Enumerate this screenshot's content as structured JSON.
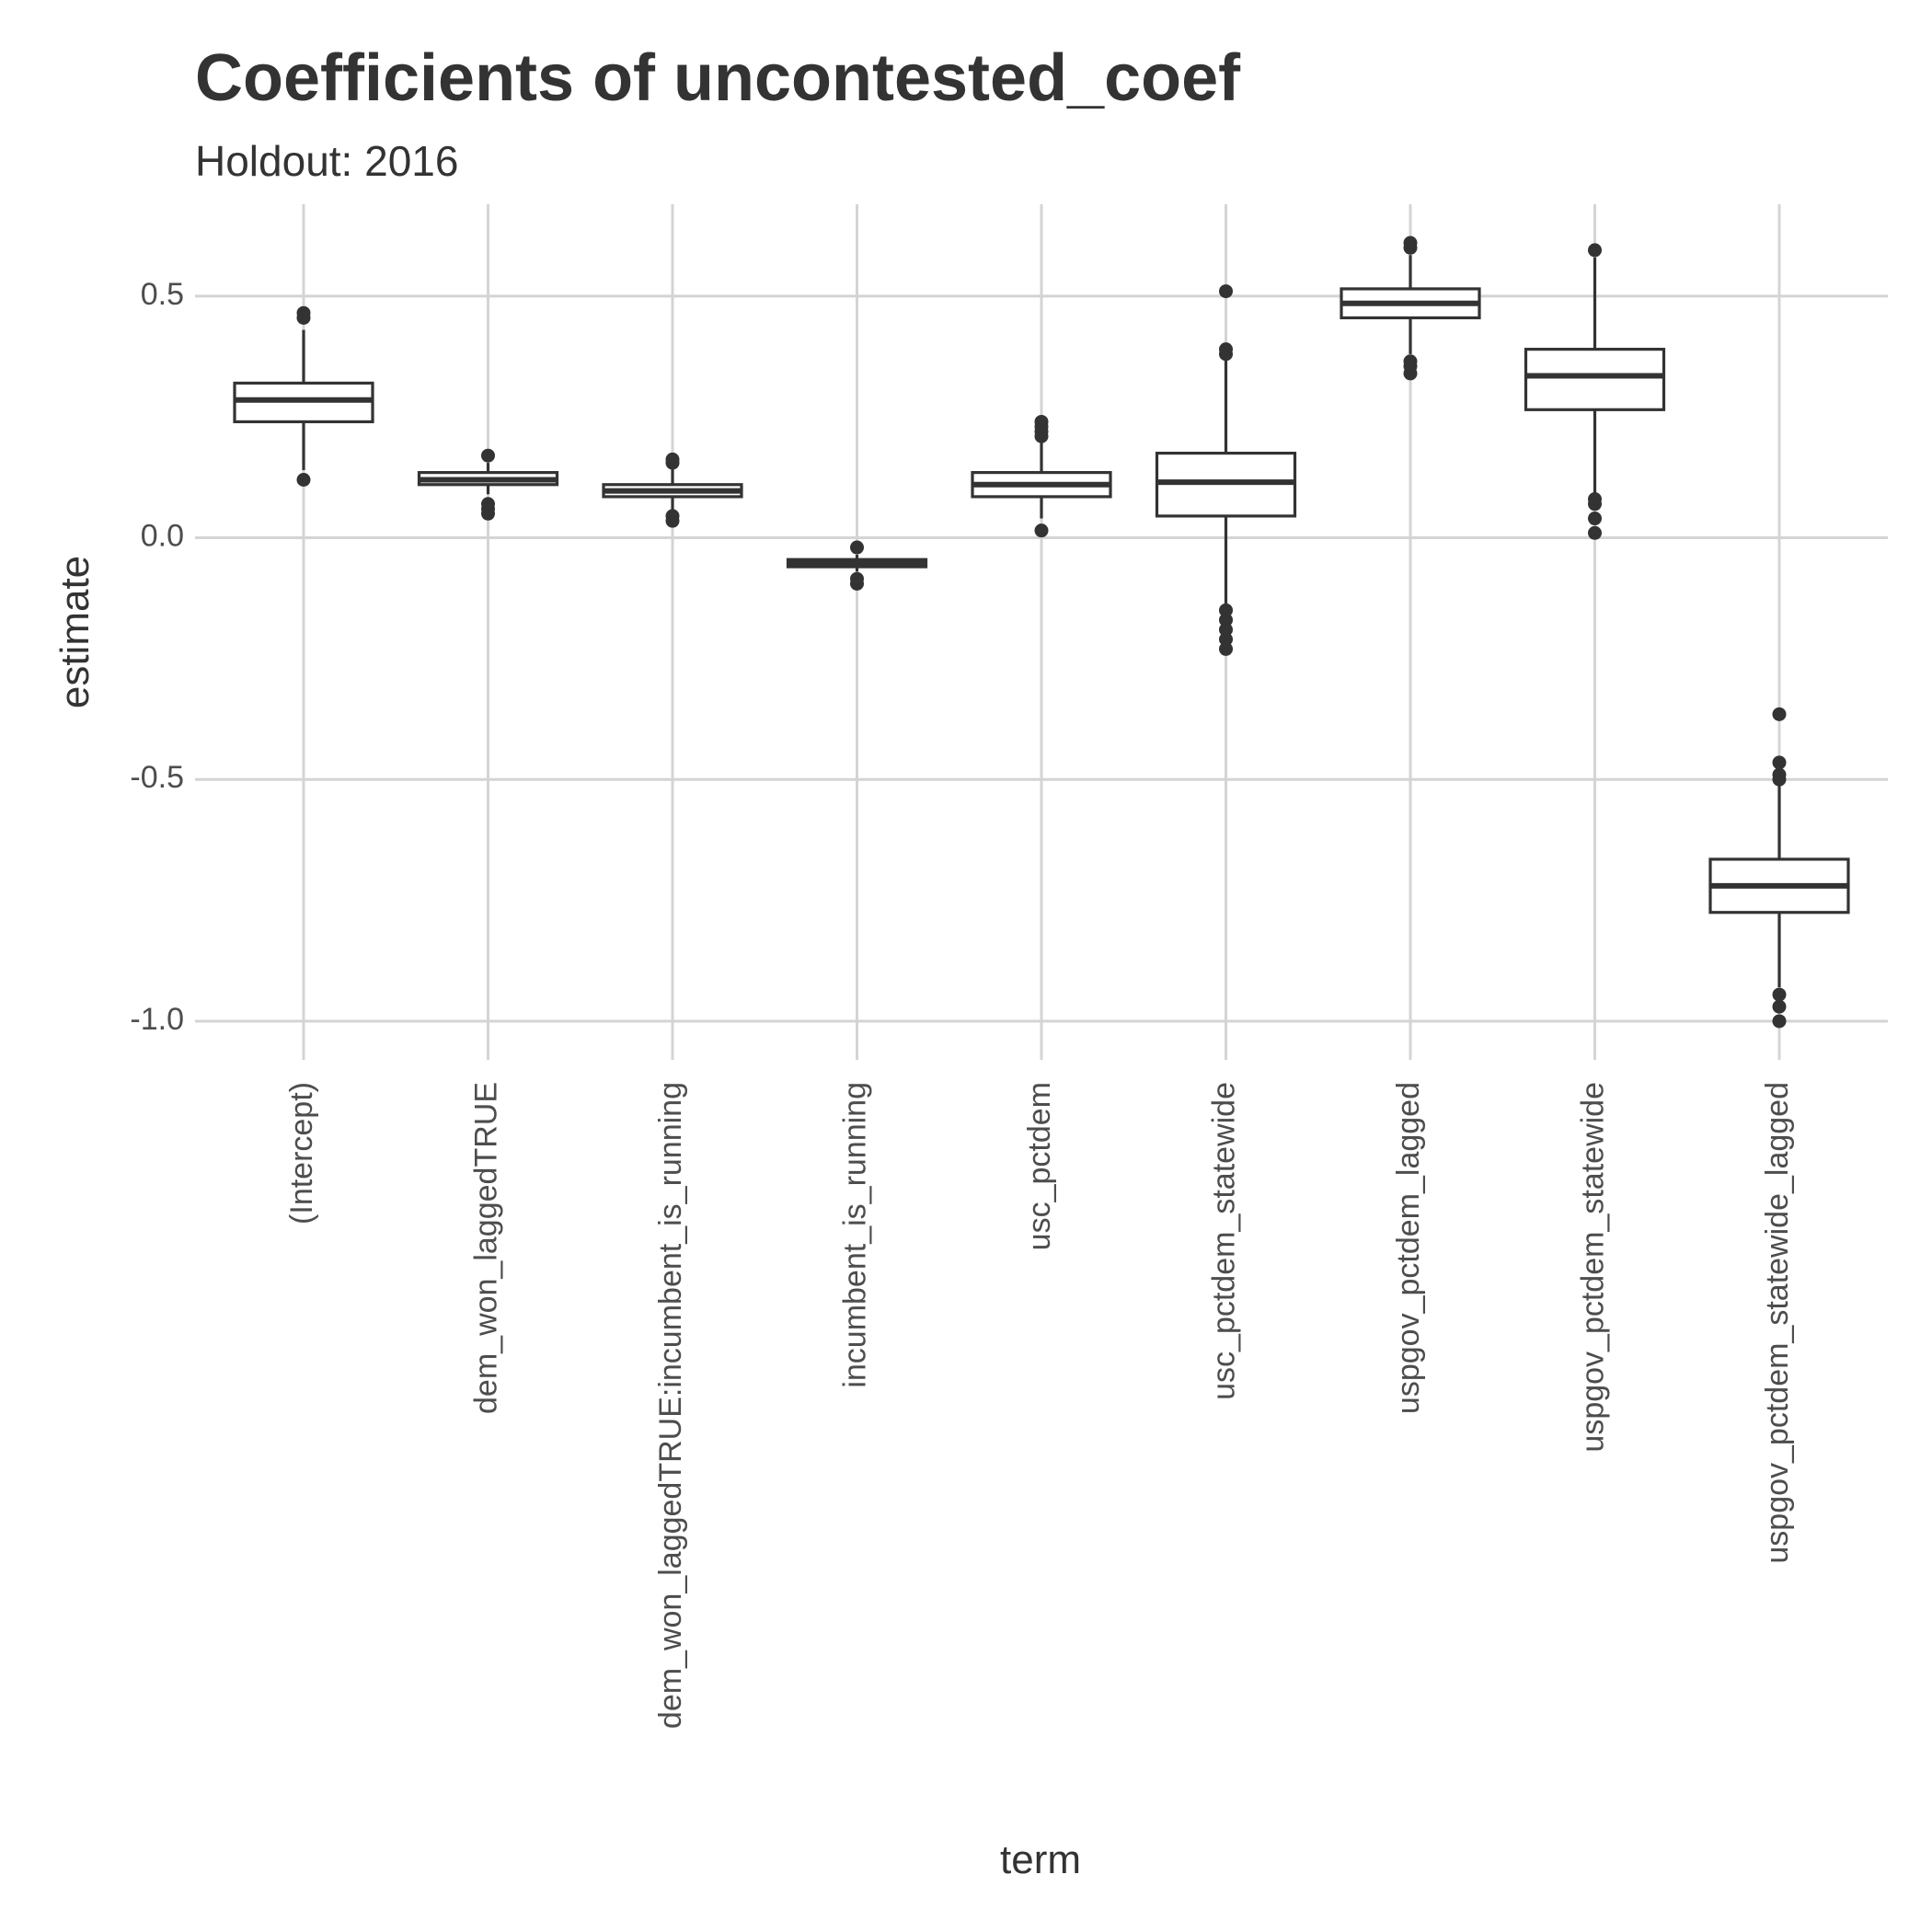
{
  "chart_data": {
    "type": "boxplot",
    "title": "Coefficients of uncontested_coef",
    "subtitle": "Holdout: 2016",
    "xlabel": "term",
    "ylabel": "estimate",
    "ylim": [
      -1.08,
      0.69
    ],
    "yticks": [
      0.5,
      0.0,
      -0.5,
      -1.0
    ],
    "ytick_labels": [
      "0.5",
      "0.0",
      "-0.5",
      "-1.0"
    ],
    "grid": true,
    "categories": [
      "(Intercept)",
      "dem_won_laggedTRUE",
      "dem_won_laggedTRUE:incumbent_is_running",
      "incumbent_is_running",
      "usc_pctdem",
      "usc_pctdem_statewide",
      "uspgov_pctdem_lagged",
      "uspgov_pctdem_statewide",
      "uspgov_pctdem_statewide_lagged"
    ],
    "boxes": [
      {
        "term": "(Intercept)",
        "whisker_low": 0.14,
        "q1": 0.24,
        "median": 0.285,
        "q3": 0.32,
        "whisker_high": 0.43,
        "outliers": [
          0.12,
          0.455,
          0.465
        ]
      },
      {
        "term": "dem_won_laggedTRUE",
        "whisker_low": 0.09,
        "q1": 0.11,
        "median": 0.12,
        "q3": 0.135,
        "whisker_high": 0.155,
        "outliers": [
          0.05,
          0.06,
          0.07,
          0.17
        ]
      },
      {
        "term": "dem_won_laggedTRUE:incumbent_is_running",
        "whisker_low": 0.055,
        "q1": 0.085,
        "median": 0.097,
        "q3": 0.11,
        "whisker_high": 0.145,
        "outliers": [
          0.035,
          0.045,
          0.155,
          0.162
        ]
      },
      {
        "term": "incumbent_is_running",
        "whisker_low": -0.07,
        "q1": -0.06,
        "median": -0.053,
        "q3": -0.045,
        "whisker_high": -0.035,
        "outliers": [
          -0.095,
          -0.085,
          -0.02
        ]
      },
      {
        "term": "usc_pctdem",
        "whisker_low": 0.04,
        "q1": 0.085,
        "median": 0.11,
        "q3": 0.135,
        "whisker_high": 0.2,
        "outliers": [
          0.015,
          0.21,
          0.22,
          0.23,
          0.24
        ]
      },
      {
        "term": "usc_pctdem_statewide",
        "whisker_low": -0.14,
        "q1": 0.045,
        "median": 0.115,
        "q3": 0.175,
        "whisker_high": 0.37,
        "outliers": [
          -0.23,
          -0.21,
          -0.19,
          -0.17,
          -0.15,
          0.38,
          0.39,
          0.51
        ]
      },
      {
        "term": "uspgov_pctdem_lagged",
        "whisker_low": 0.38,
        "q1": 0.455,
        "median": 0.485,
        "q3": 0.515,
        "whisker_high": 0.585,
        "outliers": [
          0.34,
          0.355,
          0.365,
          0.6,
          0.61
        ]
      },
      {
        "term": "uspgov_pctdem_statewide",
        "whisker_low": 0.09,
        "q1": 0.265,
        "median": 0.335,
        "q3": 0.39,
        "whisker_high": 0.58,
        "outliers": [
          0.01,
          0.04,
          0.07,
          0.08,
          0.595
        ]
      },
      {
        "term": "uspgov_pctdem_statewide_lagged",
        "whisker_low": -0.93,
        "q1": -0.775,
        "median": -0.72,
        "q3": -0.665,
        "whisker_high": -0.51,
        "outliers": [
          -1.0,
          -0.97,
          -0.945,
          -0.5,
          -0.49,
          -0.465,
          -0.365
        ]
      }
    ]
  }
}
